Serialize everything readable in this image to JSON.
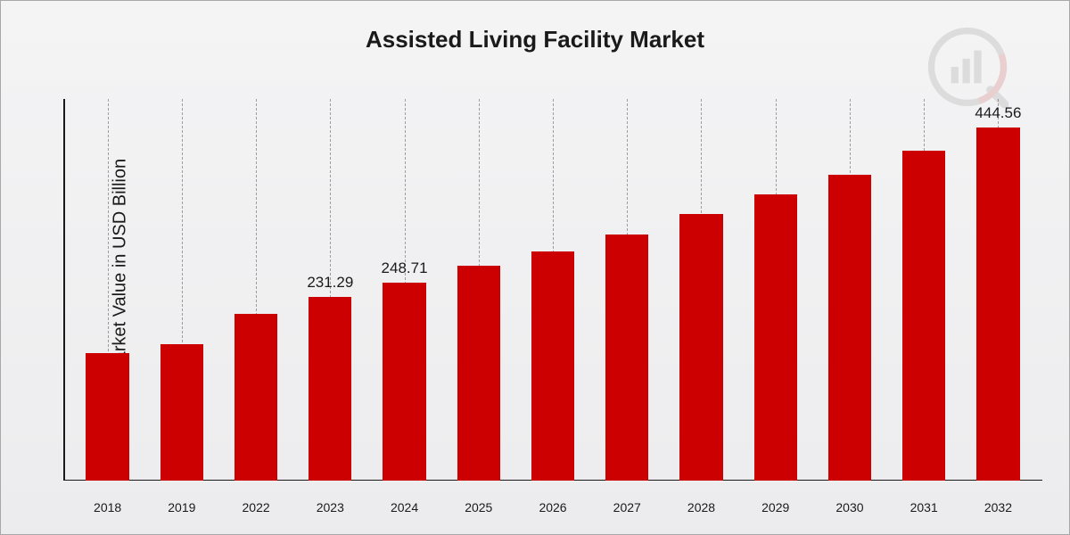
{
  "chart": {
    "type": "bar",
    "title": "Assisted Living Facility Market",
    "ylabel": "Market Value in USD Billion",
    "background_gradient_top": "#f4f4f5",
    "background_gradient_bottom": "#ececee",
    "border_color": "#a8a8a8",
    "axis_color": "#1a1a1a",
    "grid_dash_color": "rgba(0,0,0,0.35)",
    "bar_color": "#cc0000",
    "title_fontsize": 26,
    "ylabel_fontsize": 20,
    "value_label_fontsize": 17,
    "tick_fontsize": 14,
    "y_max": 480,
    "bar_width_ratio": 0.58,
    "categories": [
      "2018",
      "2019",
      "2022",
      "2023",
      "2024",
      "2025",
      "2026",
      "2027",
      "2028",
      "2029",
      "2030",
      "2031",
      "2032"
    ],
    "values": [
      160,
      172,
      210,
      231.29,
      248.71,
      270,
      288,
      310,
      335,
      360,
      385,
      415,
      444.56
    ],
    "value_labels": [
      "",
      "",
      "",
      "231.29",
      "248.71",
      "",
      "",
      "",
      "",
      "",
      "",
      "",
      "444.56"
    ],
    "logo_opacity": 0.14
  }
}
